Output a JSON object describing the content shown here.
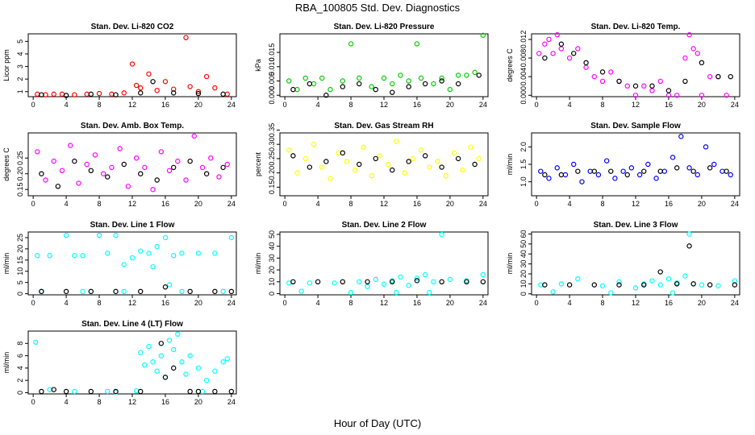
{
  "title": "RBA_100805  Std. Dev. Diagnostics",
  "xlabel": "Hour of Day (UTC)",
  "chart_data": [
    {
      "type": "scatter",
      "title": "Stan. Dev. Li-820 CO2",
      "ylabel": "Licor ppm",
      "xlim": [
        -0.6,
        24.6
      ],
      "xticks": [
        0,
        4,
        8,
        12,
        16,
        20,
        24
      ],
      "ylim": [
        0.6,
        5.6
      ],
      "yticks": [
        1,
        2,
        3,
        4,
        5
      ],
      "series": [
        {
          "color": "#ff0000",
          "x": [
            0.5,
            1.5,
            2.5,
            3.5,
            5,
            6.5,
            8,
            9.5,
            11,
            12,
            12.5,
            13,
            14,
            15,
            16,
            17,
            18.5,
            19,
            20,
            21,
            22,
            23.5
          ],
          "values": [
            0.8,
            0.75,
            0.8,
            0.8,
            0.75,
            0.8,
            0.85,
            0.8,
            0.9,
            3.2,
            1.5,
            1.3,
            2.4,
            1.1,
            1.8,
            1.2,
            5.3,
            1.4,
            1.0,
            2.2,
            1.3,
            0.8
          ]
        },
        {
          "color": "#000000",
          "x": [
            1,
            4,
            7,
            10,
            13,
            14.5,
            17,
            20,
            23
          ],
          "values": [
            0.75,
            0.7,
            0.8,
            0.75,
            0.9,
            1.8,
            0.9,
            0.85,
            0.8
          ]
        }
      ]
    },
    {
      "type": "scatter",
      "title": "Stan. Dev. Li-820 Pressure",
      "ylabel": "kPa",
      "xlim": [
        -0.6,
        24.6
      ],
      "xticks": [
        0,
        4,
        8,
        12,
        16,
        20,
        24
      ],
      "ylim": [
        -0.0005,
        0.0215
      ],
      "yticks": [
        {
          "value": 0,
          "label": "0.000"
        },
        {
          "value": 0.005,
          "label": "0.005"
        },
        {
          "value": 0.01,
          "label": "0.010"
        },
        {
          "value": 0.015,
          "label": "0.015"
        }
      ],
      "series": [
        {
          "color": "#00cc00",
          "x": [
            0.5,
            1.5,
            2.5,
            3.5,
            4.5,
            5.5,
            7,
            8,
            9,
            10.5,
            12,
            13,
            14,
            15,
            16,
            16.5,
            18,
            19,
            20,
            21,
            22,
            23,
            24
          ],
          "values": [
            0.005,
            0.002,
            0.006,
            0.004,
            0.006,
            0.002,
            0.005,
            0.018,
            0.006,
            0.003,
            0.006,
            0.004,
            0.007,
            0.005,
            0.018,
            0.006,
            0.004,
            0.006,
            0.002,
            0.007,
            0.007,
            0.008,
            0.021
          ]
        },
        {
          "color": "#000000",
          "x": [
            1,
            3,
            5,
            7,
            9,
            11,
            13,
            15,
            17,
            19,
            21,
            23.5
          ],
          "values": [
            0.002,
            0.004,
            0,
            0.003,
            0.004,
            0.002,
            0.001,
            0.003,
            0.004,
            0.005,
            0.004,
            0.007
          ]
        }
      ]
    },
    {
      "type": "scatter",
      "title": "Stan. Dev. Li-820 Temp.",
      "ylabel": "degrees C",
      "xlim": [
        -0.6,
        24.6
      ],
      "xticks": [
        0,
        4,
        8,
        12,
        16,
        20,
        24
      ],
      "ylim": [
        -0.0003,
        0.0132
      ],
      "yticks": [
        {
          "value": 0,
          "label": "0.000"
        },
        {
          "value": 0.004,
          "label": "0.004"
        },
        {
          "value": 0.008,
          "label": "0.008"
        },
        {
          "value": 0.012,
          "label": "0.012"
        }
      ],
      "series": [
        {
          "color": "#ff00ff",
          "x": [
            0.3,
            1,
            1.5,
            2,
            2.5,
            3,
            4,
            5,
            6,
            7,
            8,
            9,
            10,
            11,
            12,
            13,
            14,
            15,
            16,
            17,
            18,
            18.5,
            19,
            19.5,
            20,
            21,
            22,
            23
          ],
          "values": [
            0.009,
            0.011,
            0.012,
            0.009,
            0.013,
            0.01,
            0.008,
            0.01,
            0.006,
            0.004,
            0.003,
            0.005,
            0.003,
            0.002,
            0,
            0.002,
            0.001,
            0.003,
            0,
            0,
            0.008,
            0.013,
            0.01,
            0.009,
            0,
            0.004,
            0.004,
            0
          ]
        },
        {
          "color": "#000000",
          "x": [
            1,
            3,
            4.5,
            6,
            8,
            10,
            12,
            14,
            16,
            18,
            20,
            22,
            23.5
          ],
          "values": [
            0.008,
            0.011,
            0.009,
            0.007,
            0.005,
            0.003,
            0.002,
            0.002,
            0.001,
            0.003,
            0.007,
            0.004,
            0.004
          ]
        }
      ]
    },
    {
      "type": "scatter",
      "title": "Stan. Dev. Amb. Box Temp.",
      "ylabel": "degrees C",
      "xlim": [
        -0.6,
        24.6
      ],
      "xticks": [
        0,
        4,
        8,
        12,
        16,
        20,
        24
      ],
      "ylim": [
        0.13,
        0.33
      ],
      "yticks": [
        0.15,
        {
          "value": 0.2,
          "label": "0.20"
        },
        0.25
      ],
      "series": [
        {
          "color": "#ff00ff",
          "x": [
            0.5,
            1.5,
            2.5,
            3.5,
            4.5,
            5.5,
            6.5,
            7.5,
            8.5,
            9.5,
            10.5,
            11.5,
            12.5,
            13.5,
            14.5,
            15.5,
            16.5,
            17.5,
            18.5,
            19.5,
            20.5,
            21.5,
            22.5,
            23.5
          ],
          "values": [
            0.27,
            0.18,
            0.24,
            0.21,
            0.29,
            0.17,
            0.23,
            0.26,
            0.2,
            0.22,
            0.28,
            0.16,
            0.25,
            0.22,
            0.15,
            0.27,
            0.21,
            0.24,
            0.18,
            0.32,
            0.22,
            0.25,
            0.19,
            0.23
          ]
        },
        {
          "color": "#000000",
          "x": [
            1,
            3,
            5,
            7,
            9,
            11,
            13,
            15,
            17,
            19,
            21,
            23
          ],
          "values": [
            0.2,
            0.16,
            0.24,
            0.21,
            0.19,
            0.23,
            0.2,
            0.18,
            0.22,
            0.24,
            0.2,
            0.22
          ]
        }
      ]
    },
    {
      "type": "scatter",
      "title": "Stan. Dev. Gas Stream RH",
      "ylabel": "percent",
      "xlim": [
        -0.6,
        24.6
      ],
      "xticks": [
        0,
        4,
        8,
        12,
        16,
        20,
        24
      ],
      "ylim": [
        0.12,
        0.34
      ],
      "yticks": [
        0.15,
        {
          "value": 0.2,
          "label": "0.20"
        },
        0.25,
        {
          "value": 0.3,
          "label": "0.30"
        },
        0.35
      ],
      "series": [
        {
          "color": "#ffff00",
          "x": [
            0.5,
            1.5,
            2.5,
            3.5,
            4.5,
            5.5,
            6.5,
            7.5,
            8.5,
            9.5,
            10.5,
            11.5,
            12.5,
            13.5,
            14.5,
            15.5,
            16.5,
            17.5,
            18.5,
            19.5,
            20.5,
            21.5,
            22.5,
            23.5
          ],
          "values": [
            0.28,
            0.2,
            0.25,
            0.3,
            0.22,
            0.18,
            0.27,
            0.24,
            0.21,
            0.29,
            0.19,
            0.26,
            0.23,
            0.31,
            0.2,
            0.25,
            0.28,
            0.22,
            0.24,
            0.19,
            0.27,
            0.21,
            0.29,
            0.25
          ]
        },
        {
          "color": "#000000",
          "x": [
            1,
            3,
            5,
            7,
            9,
            11,
            13,
            15,
            17,
            19,
            21,
            23
          ],
          "values": [
            0.26,
            0.22,
            0.24,
            0.27,
            0.23,
            0.25,
            0.21,
            0.24,
            0.26,
            0.22,
            0.25,
            0.23
          ]
        }
      ]
    },
    {
      "type": "scatter",
      "title": "Stan. Dev. Sample Flow",
      "ylabel": "ml/min",
      "xlim": [
        -0.6,
        24.6
      ],
      "xticks": [
        0,
        4,
        8,
        12,
        16,
        20,
        24
      ],
      "ylim": [
        0.6,
        2.4
      ],
      "yticks": [
        {
          "value": 1,
          "label": "1.0"
        },
        1.5,
        {
          "value": 2,
          "label": "2.0"
        }
      ],
      "series": [
        {
          "color": "#0000ff",
          "x": [
            0.5,
            1.5,
            2.5,
            3.5,
            4.5,
            5.5,
            6.5,
            7.5,
            8.5,
            9.5,
            10.5,
            11.5,
            12.5,
            13.5,
            14.5,
            15.5,
            16.5,
            17.5,
            18.5,
            19.5,
            20.5,
            21.5,
            22.5,
            23.5
          ],
          "values": [
            1.3,
            1.1,
            1.4,
            1.2,
            1.5,
            1.0,
            1.3,
            1.2,
            1.6,
            1.1,
            1.3,
            1.4,
            1.2,
            1.5,
            1.1,
            1.3,
            1.7,
            2.3,
            1.4,
            1.2,
            2.0,
            1.5,
            1.3,
            1.2
          ]
        },
        {
          "color": "#000000",
          "x": [
            1,
            3,
            5,
            7,
            9,
            11,
            13,
            15,
            17,
            19,
            21,
            23
          ],
          "values": [
            1.2,
            1.2,
            1.3,
            1.3,
            1.3,
            1.2,
            1.3,
            1.3,
            1.4,
            1.3,
            1.4,
            1.3
          ]
        }
      ]
    },
    {
      "type": "scatter",
      "title": "Stan. Dev. Line 1 Flow",
      "ylabel": "ml/min",
      "xlim": [
        -0.6,
        24.6
      ],
      "xticks": [
        0,
        4,
        8,
        12,
        16,
        20,
        24
      ],
      "ylim": [
        -0.5,
        27.5
      ],
      "yticks": [
        0,
        5,
        10,
        15,
        20,
        25
      ],
      "series": [
        {
          "color": "#00ffff",
          "x": [
            0.5,
            2,
            4,
            5,
            6,
            8,
            9,
            10,
            11,
            12,
            13,
            14,
            14.5,
            15,
            16,
            16.5,
            17,
            18,
            20,
            22,
            24,
            1,
            6,
            11,
            18,
            23
          ],
          "values": [
            17,
            17,
            26,
            17,
            17,
            26,
            18,
            26,
            13,
            16,
            19,
            18,
            12,
            21,
            25,
            4,
            17,
            18,
            18,
            18,
            25,
            1,
            1,
            1,
            1,
            1
          ]
        },
        {
          "color": "#000000",
          "x": [
            1,
            4,
            7,
            10,
            13,
            16,
            19,
            22,
            24
          ],
          "values": [
            1,
            1,
            1,
            1,
            1,
            3,
            1,
            1,
            1
          ]
        }
      ]
    },
    {
      "type": "scatter",
      "title": "Stan. Dev. Line 2 Flow",
      "ylabel": "ml/min",
      "xlim": [
        -0.6,
        24.6
      ],
      "xticks": [
        0,
        4,
        8,
        12,
        16,
        20,
        24
      ],
      "ylim": [
        -1,
        52
      ],
      "yticks": [
        0,
        10,
        20,
        30,
        40,
        50
      ],
      "series": [
        {
          "color": "#00ffff",
          "x": [
            0.5,
            3,
            6,
            9,
            10,
            11,
            12,
            13,
            14,
            15,
            16,
            17,
            18,
            19,
            20,
            22,
            24,
            2,
            8,
            13.5,
            17.5
          ],
          "values": [
            9,
            9,
            9,
            10,
            6,
            12,
            8,
            11,
            14,
            7,
            13,
            16,
            10,
            50,
            12,
            11,
            16,
            2,
            1,
            1,
            1
          ]
        },
        {
          "color": "#000000",
          "x": [
            1,
            4,
            7,
            10,
            13,
            16,
            19,
            22,
            24
          ],
          "values": [
            10,
            10,
            10,
            10,
            10,
            11,
            10,
            10,
            10
          ]
        }
      ]
    },
    {
      "type": "scatter",
      "title": "Stan. Dev. Line 3 Flow",
      "ylabel": "ml/min",
      "xlim": [
        -0.6,
        24.6
      ],
      "xticks": [
        0,
        4,
        8,
        12,
        16,
        20,
        24
      ],
      "ylim": [
        -1,
        62
      ],
      "yticks": [
        0,
        10,
        20,
        30,
        40,
        50,
        60
      ],
      "series": [
        {
          "color": "#00ffff",
          "x": [
            0.5,
            3,
            5,
            8,
            10,
            12,
            13,
            14,
            15,
            16,
            17,
            18,
            18.5,
            19,
            20,
            22,
            24,
            2,
            9,
            16.5
          ],
          "values": [
            9,
            10,
            15,
            8,
            12,
            6,
            10,
            13,
            9,
            15,
            11,
            18,
            60,
            10,
            9,
            8,
            13,
            2,
            1,
            1
          ]
        },
        {
          "color": "#000000",
          "x": [
            1,
            4,
            7,
            10,
            13,
            15,
            17,
            18.5,
            19,
            21,
            24
          ],
          "values": [
            9,
            9,
            9,
            9,
            9,
            22,
            10,
            48,
            10,
            9,
            9
          ]
        }
      ]
    },
    {
      "type": "scatter",
      "title": "Stan. Dev. Line 4 (LT) Flow",
      "ylabel": "ml/min",
      "xlim": [
        -0.6,
        24.6
      ],
      "xticks": [
        0,
        4,
        8,
        12,
        16,
        20,
        24
      ],
      "ylim": [
        -0.2,
        10
      ],
      "yticks": [
        0,
        2,
        4,
        6,
        8
      ],
      "series": [
        {
          "color": "#00ffff",
          "x": [
            0.3,
            2,
            5,
            9,
            12.5,
            13,
            13.5,
            14,
            14.5,
            15,
            15.5,
            16,
            16.5,
            17,
            17.5,
            18,
            18.5,
            19,
            20,
            21,
            22,
            23,
            23.5,
            10,
            20.5
          ],
          "values": [
            8.2,
            0.5,
            0.2,
            0.2,
            0.3,
            6.5,
            4.5,
            7.5,
            5,
            3.5,
            6,
            2.5,
            8.5,
            7,
            9.5,
            5,
            3,
            6,
            4,
            2,
            3.5,
            5,
            5.5,
            0.1,
            0.2
          ]
        },
        {
          "color": "#000000",
          "x": [
            1,
            2.5,
            4,
            7,
            10,
            13,
            15.5,
            16,
            17,
            19,
            20,
            22,
            24
          ],
          "values": [
            0.2,
            0.5,
            0.2,
            0.2,
            0.2,
            0.2,
            8,
            2.5,
            4,
            0.2,
            0.2,
            0.2,
            0.2
          ]
        }
      ]
    }
  ]
}
